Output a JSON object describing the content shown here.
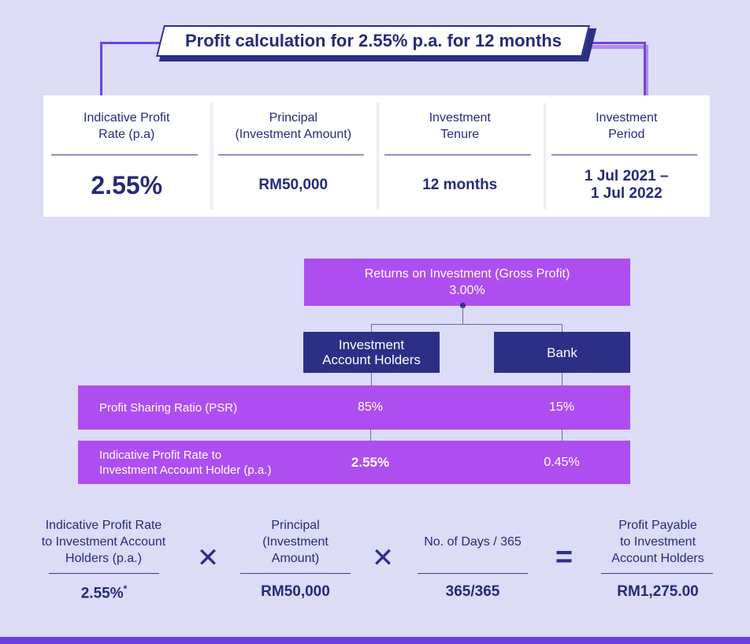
{
  "title": "Profit calculation for 2.55% p.a. for 12 months",
  "info": {
    "columns": [
      {
        "label_line1": "Indicative Profit",
        "label_line2": "Rate (p.a)",
        "value_line1": "2.55%",
        "value_line2": ""
      },
      {
        "label_line1": "Principal",
        "label_line2": "(Investment Amount)",
        "value_line1": "RM50,000",
        "value_line2": ""
      },
      {
        "label_line1": "Investment",
        "label_line2": "Tenure",
        "value_line1": "12 months",
        "value_line2": ""
      },
      {
        "label_line1": "Investment",
        "label_line2": "Period",
        "value_line1": "1 Jul 2021 –",
        "value_line2": "1 Jul 2022"
      }
    ]
  },
  "tree": {
    "gross_label": "Returns on Investment (Gross Profit)",
    "gross_value": "3.00%",
    "left_party_line1": "Investment",
    "left_party_line2": "Account Holders",
    "right_party": "Bank",
    "psr_label": "Profit Sharing Ratio (PSR)",
    "psr_left": "85%",
    "psr_right": "15%",
    "rate_label_line1": "Indicative Profit Rate to",
    "rate_label_line2": "Investment Account Holder (p.a.)",
    "rate_left": "2.55%",
    "rate_right": "0.45%"
  },
  "formula": {
    "term1_line1": "Indicative Profit Rate",
    "term1_line2": "to Investment Account",
    "term1_line3": "Holders (p.a.)",
    "term1_value": "2.55%",
    "term1_footnote": "*",
    "op1": "✕",
    "term2_line1": "Principal",
    "term2_line2": "(Investment",
    "term2_line3": "Amount)",
    "term2_value": "RM50,000",
    "op2": "✕",
    "term3_line1": "No. of Days / 365",
    "term3_value": "365/365",
    "op3": "=",
    "result_line1": "Profit Payable",
    "result_line2": "to Investment",
    "result_line3": "Account Holders",
    "result_value": "RM1,275.00"
  },
  "colors": {
    "background": "#dcdcf7",
    "navy": "#2b2f86",
    "purple": "#ae4ef0",
    "accent": "#6c3fe0"
  }
}
